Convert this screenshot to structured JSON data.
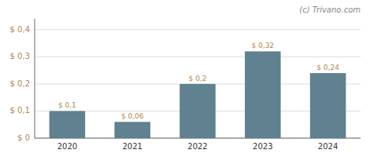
{
  "chart_data": {
    "type": "bar",
    "categories": [
      "2020",
      "2021",
      "2022",
      "2023",
      "2024"
    ],
    "values": [
      0.1,
      0.06,
      0.2,
      0.32,
      0.24
    ],
    "value_labels": [
      "$ 0,1",
      "$ 0,06",
      "$ 0,2",
      "$ 0,32",
      "$ 0,24"
    ],
    "data_labels": true,
    "color": "#5f8190",
    "ylim": [
      0,
      0.44
    ],
    "yticks": [
      {
        "value": 0.0,
        "label": "$ 0"
      },
      {
        "value": 0.1,
        "label": "$ 0,1"
      },
      {
        "value": 0.2,
        "label": "$ 0,2"
      },
      {
        "value": 0.3,
        "label": "$ 0,3"
      },
      {
        "value": 0.4,
        "label": "$ 0,4"
      }
    ],
    "grid": true,
    "annotations": [
      "(c) Trivano.com"
    ]
  }
}
